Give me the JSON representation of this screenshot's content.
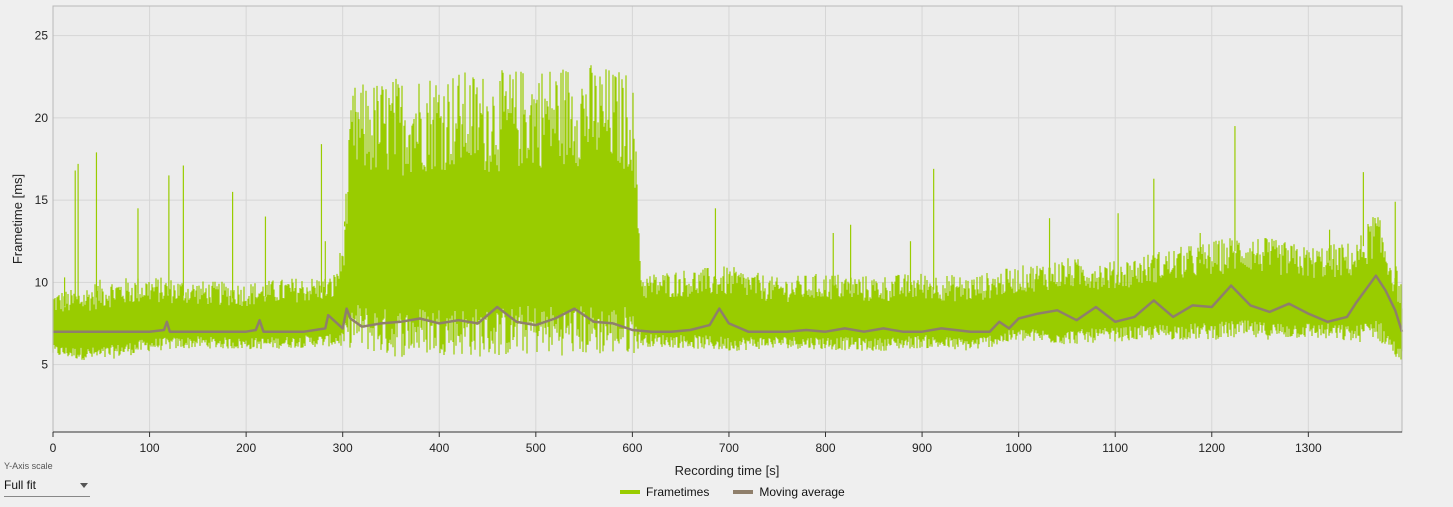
{
  "chart_data": {
    "type": "line",
    "xlabel": "Recording time [s]",
    "ylabel": "Frametime [ms]",
    "xlim": [
      0,
      1397
    ],
    "ylim": [
      0.9,
      26.8
    ],
    "x_ticks": [
      0,
      100,
      200,
      300,
      400,
      500,
      600,
      700,
      800,
      900,
      1000,
      1100,
      1200,
      1300
    ],
    "y_ticks": [
      5,
      10,
      15,
      20,
      25
    ],
    "grid": true,
    "legend_position": "bottom-center",
    "series": [
      {
        "name": "Frametimes",
        "color": "#99cc00",
        "x": [
          0,
          25,
          50,
          100,
          150,
          200,
          250,
          290,
          300,
          310,
          350,
          400,
          450,
          500,
          550,
          600,
          610,
          650,
          700,
          750,
          800,
          850,
          900,
          950,
          1000,
          1050,
          1100,
          1150,
          1200,
          1230,
          1250,
          1300,
          1350,
          1370,
          1397
        ],
        "min": [
          5.5,
          5.3,
          5.2,
          5.8,
          6.0,
          5.9,
          6.0,
          6.1,
          6.0,
          6.0,
          5.4,
          5.6,
          5.4,
          5.6,
          5.5,
          5.6,
          6.1,
          6.0,
          5.8,
          6.0,
          5.9,
          5.8,
          6.0,
          5.8,
          6.4,
          6.2,
          6.4,
          6.5,
          6.5,
          6.6,
          6.5,
          6.6,
          6.3,
          6.6,
          5.0
        ],
        "max": [
          9.5,
          9.6,
          10.2,
          10.4,
          10.1,
          10.0,
          10.3,
          10.4,
          12.5,
          22.0,
          22.5,
          23.0,
          22.8,
          23.2,
          23.5,
          22.8,
          10.5,
          10.8,
          11.0,
          10.3,
          10.6,
          10.4,
          10.6,
          10.4,
          11.0,
          11.5,
          11.3,
          12.0,
          12.5,
          13.0,
          12.8,
          12.2,
          12.5,
          14.5,
          10.0
        ],
        "spikes": [
          {
            "x": 12,
            "y": 10.3
          },
          {
            "x": 23,
            "y": 16.8
          },
          {
            "x": 26,
            "y": 17.2
          },
          {
            "x": 45,
            "y": 17.9
          },
          {
            "x": 88,
            "y": 14.5
          },
          {
            "x": 120,
            "y": 16.5
          },
          {
            "x": 135,
            "y": 17.1
          },
          {
            "x": 186,
            "y": 15.5
          },
          {
            "x": 220,
            "y": 14.0
          },
          {
            "x": 278,
            "y": 18.4
          },
          {
            "x": 282,
            "y": 12.5
          },
          {
            "x": 302,
            "y": 13.7
          },
          {
            "x": 686,
            "y": 14.5
          },
          {
            "x": 808,
            "y": 13.0
          },
          {
            "x": 826,
            "y": 13.5
          },
          {
            "x": 888,
            "y": 12.5
          },
          {
            "x": 912,
            "y": 16.9
          },
          {
            "x": 1032,
            "y": 13.9
          },
          {
            "x": 1103,
            "y": 14.2
          },
          {
            "x": 1140,
            "y": 16.3
          },
          {
            "x": 1188,
            "y": 13.0
          },
          {
            "x": 1224,
            "y": 19.5
          },
          {
            "x": 1322,
            "y": 13.2
          },
          {
            "x": 1357,
            "y": 16.7
          },
          {
            "x": 1390,
            "y": 14.9
          }
        ]
      },
      {
        "name": "Moving average",
        "color": "#8f7f6b",
        "x": [
          0,
          100,
          115,
          118,
          121,
          200,
          210,
          214,
          218,
          260,
          282,
          285,
          300,
          304,
          308,
          320,
          340,
          360,
          380,
          400,
          420,
          440,
          460,
          480,
          500,
          520,
          540,
          560,
          580,
          600,
          620,
          640,
          660,
          680,
          690,
          700,
          720,
          740,
          760,
          780,
          800,
          820,
          840,
          860,
          880,
          900,
          920,
          950,
          970,
          980,
          990,
          1000,
          1020,
          1040,
          1060,
          1080,
          1100,
          1120,
          1140,
          1160,
          1180,
          1200,
          1220,
          1240,
          1260,
          1280,
          1300,
          1320,
          1340,
          1350,
          1360,
          1370,
          1380,
          1390,
          1397
        ],
        "y": [
          7.0,
          7.0,
          7.1,
          7.6,
          7.0,
          7.0,
          7.1,
          7.7,
          7.0,
          7.0,
          7.2,
          8.0,
          7.2,
          8.4,
          7.8,
          7.3,
          7.5,
          7.6,
          7.8,
          7.5,
          7.7,
          7.5,
          8.5,
          7.6,
          7.4,
          7.8,
          8.4,
          7.6,
          7.5,
          7.1,
          7.0,
          7.0,
          7.1,
          7.4,
          8.4,
          7.5,
          7.0,
          7.0,
          7.0,
          7.1,
          7.0,
          7.2,
          7.0,
          7.2,
          7.0,
          7.0,
          7.2,
          7.0,
          7.0,
          7.6,
          7.2,
          7.8,
          8.1,
          8.3,
          7.7,
          8.5,
          7.6,
          7.9,
          8.9,
          7.9,
          8.6,
          8.5,
          9.8,
          8.6,
          8.2,
          8.7,
          8.1,
          7.6,
          7.9,
          8.8,
          9.6,
          10.4,
          9.5,
          8.3,
          7.0
        ]
      }
    ]
  },
  "controls": {
    "yaxis_caption": "Y-Axis scale",
    "yaxis_value": "Full fit"
  }
}
